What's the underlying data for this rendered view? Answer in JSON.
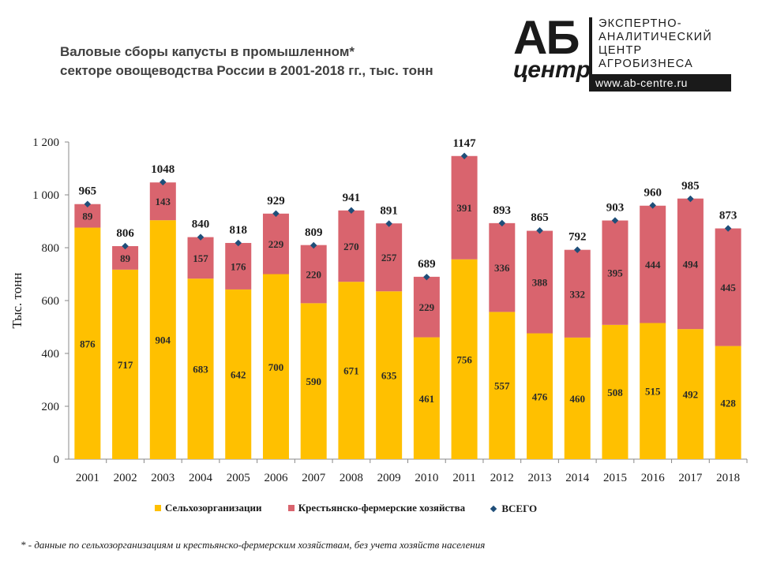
{
  "header": {
    "title_line1": "Валовые сборы капусты в промышленном*",
    "title_line2": "секторе овощеводства России в 2001-2018 гг., тыс. тонн"
  },
  "logo": {
    "mark_ab": "АБ",
    "mark_centr": "центр",
    "line1": "ЭКСПЕРТНО-",
    "line2": "АНАЛИТИЧЕСКИЙ",
    "line3": "ЦЕНТР",
    "line4": "АГРОБИЗНЕСА",
    "url": "www.ab-centre.ru"
  },
  "footnote": "* - данные по сельхозорганизациям и крестьянско-фермерским  хозяйствам, без учета хозяйств населения",
  "colors": {
    "series1": "#FFC000",
    "series2": "#D9646E",
    "total_marker": "#1F4E79"
  },
  "chart_data": {
    "type": "bar",
    "stacked": true,
    "title": "Валовые сборы капусты в промышленном* секторе овощеводства России в 2001-2018 гг., тыс. тонн",
    "xlabel": "",
    "ylabel": "Тыс. тонн",
    "ylim": [
      0,
      1200
    ],
    "yticks": [
      0,
      200,
      400,
      600,
      800,
      1000,
      1200
    ],
    "ytick_labels": [
      "0",
      "200",
      "400",
      "600",
      "800",
      "1 000",
      "1 200"
    ],
    "categories": [
      "2001",
      "2002",
      "2003",
      "2004",
      "2005",
      "2006",
      "2007",
      "2008",
      "2009",
      "2010",
      "2011",
      "2012",
      "2013",
      "2014",
      "2015",
      "2016",
      "2017",
      "2018"
    ],
    "series": [
      {
        "name": "Сельхозорганизации",
        "values": [
          876,
          717,
          904,
          683,
          642,
          700,
          590,
          671,
          635,
          461,
          756,
          557,
          476,
          460,
          508,
          515,
          492,
          428
        ]
      },
      {
        "name": "Крестьянско-фермерские хозяйства",
        "values": [
          89,
          89,
          143,
          157,
          176,
          229,
          220,
          270,
          257,
          229,
          391,
          336,
          388,
          332,
          395,
          444,
          494,
          445
        ]
      }
    ],
    "total": {
      "name": "ВСЕГО",
      "values": [
        965,
        806,
        1048,
        840,
        818,
        929,
        809,
        941,
        891,
        689,
        1147,
        893,
        865,
        792,
        903,
        960,
        985,
        873
      ]
    },
    "legend_position": "bottom"
  }
}
